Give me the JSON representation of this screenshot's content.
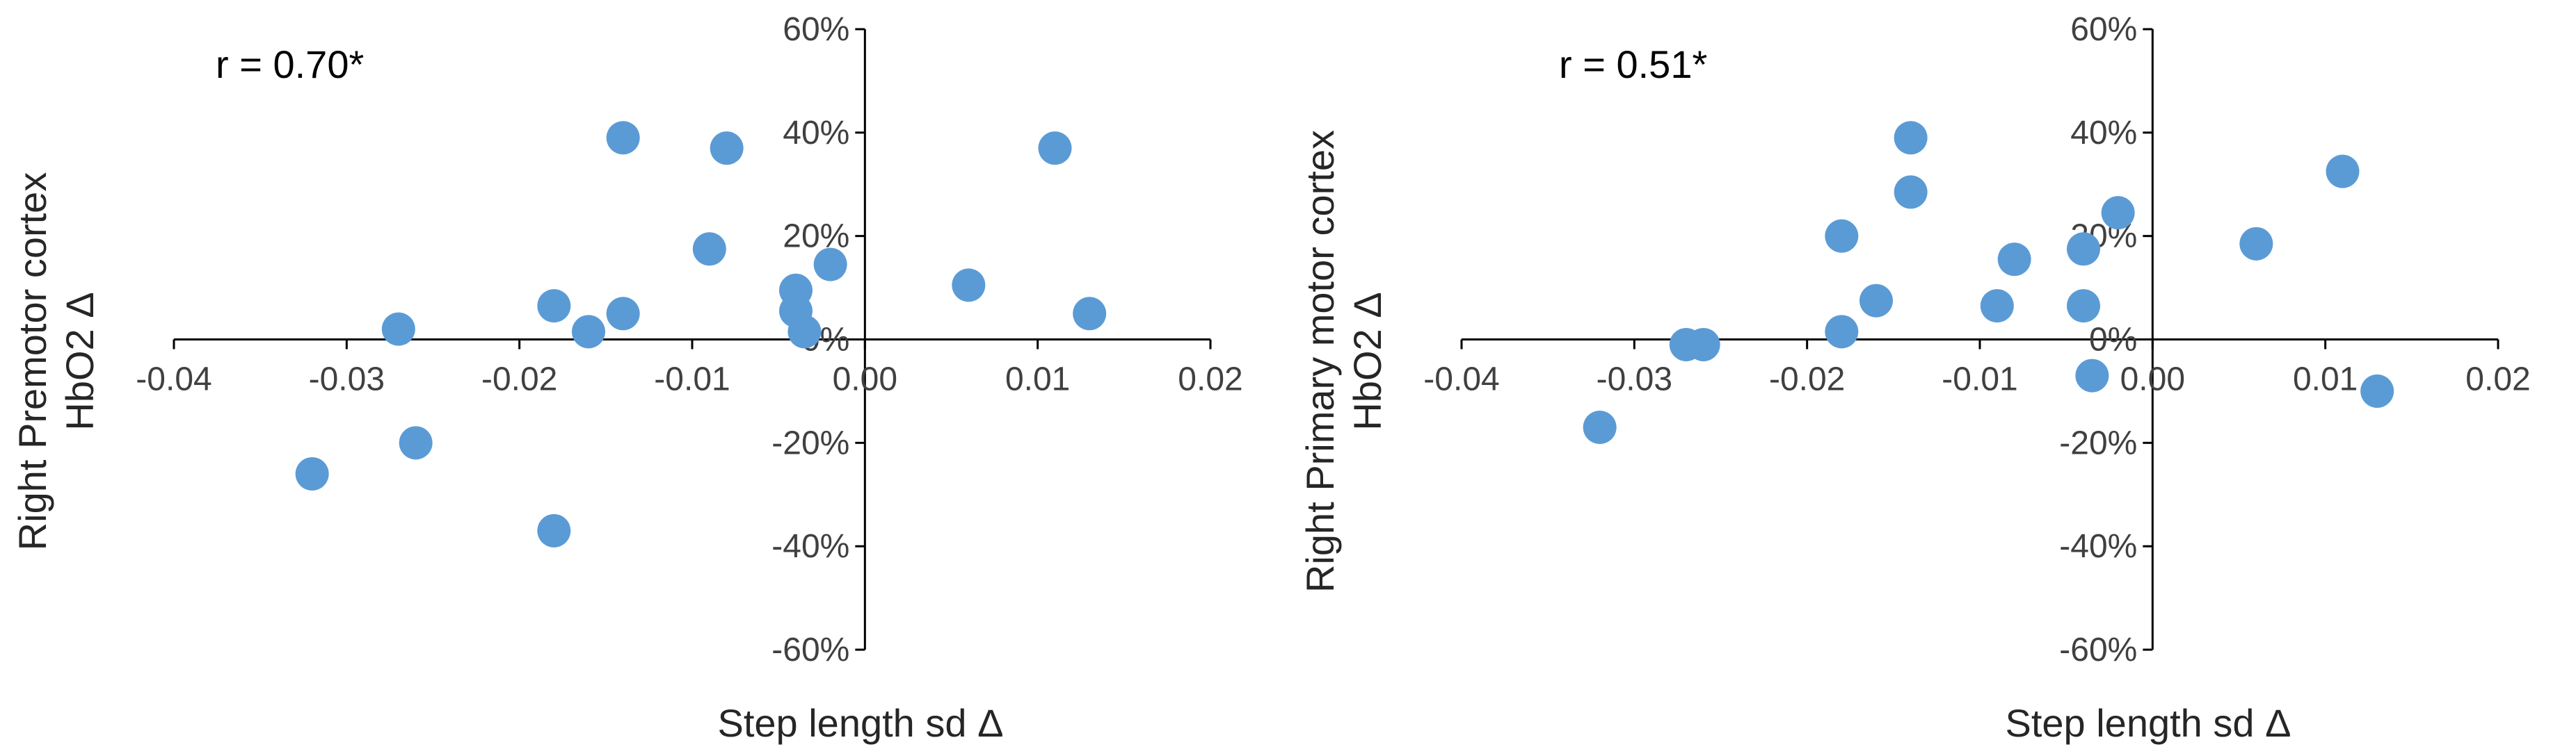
{
  "chart_data": [
    {
      "type": "scatter",
      "panel": "left",
      "annotation": "r = 0.70*",
      "xlabel": "Step length sd Δ",
      "ylabel": [
        "Right Premotor cortex",
        "HbO2 Δ"
      ],
      "xlim": [
        -0.04,
        0.02
      ],
      "ylim": [
        -0.6,
        0.6
      ],
      "x_ticks": [
        -0.04,
        -0.03,
        -0.02,
        -0.01,
        0.0,
        0.01,
        0.02
      ],
      "x_tick_labels": [
        "-0.04",
        "-0.03",
        "-0.02",
        "-0.01",
        "0.00",
        "0.01",
        "0.02"
      ],
      "y_ticks": [
        -0.6,
        -0.4,
        -0.2,
        0.0,
        0.2,
        0.4,
        0.6
      ],
      "y_tick_labels": [
        "-60%",
        "-40%",
        "-20%",
        "0%",
        "20%",
        "40%",
        "60%"
      ],
      "grid": false,
      "marker_color": "#5B9BD5",
      "series": [
        {
          "points": [
            {
              "x": -0.032,
              "y": -0.26
            },
            {
              "x": -0.027,
              "y": 0.02
            },
            {
              "x": -0.026,
              "y": -0.2
            },
            {
              "x": -0.018,
              "y": 0.065
            },
            {
              "x": -0.018,
              "y": -0.37
            },
            {
              "x": -0.016,
              "y": 0.015
            },
            {
              "x": -0.014,
              "y": 0.39
            },
            {
              "x": -0.014,
              "y": 0.05
            },
            {
              "x": -0.009,
              "y": 0.175
            },
            {
              "x": -0.008,
              "y": 0.37
            },
            {
              "x": -0.004,
              "y": 0.095
            },
            {
              "x": -0.004,
              "y": 0.055
            },
            {
              "x": -0.0035,
              "y": 0.015
            },
            {
              "x": -0.002,
              "y": 0.145
            },
            {
              "x": 0.006,
              "y": 0.105
            },
            {
              "x": 0.011,
              "y": 0.37
            },
            {
              "x": 0.013,
              "y": 0.05
            }
          ]
        }
      ]
    },
    {
      "type": "scatter",
      "panel": "right",
      "annotation": "r = 0.51*",
      "xlabel": "Step length sd Δ",
      "ylabel": [
        "Right Primary motor cortex",
        "HbO2 Δ"
      ],
      "xlim": [
        -0.04,
        0.02
      ],
      "ylim": [
        -0.6,
        0.6
      ],
      "x_ticks": [
        -0.04,
        -0.03,
        -0.02,
        -0.01,
        0.0,
        0.01,
        0.02
      ],
      "x_tick_labels": [
        "-0.04",
        "-0.03",
        "-0.02",
        "-0.01",
        "0.00",
        "0.01",
        "0.02"
      ],
      "y_ticks": [
        -0.6,
        -0.4,
        -0.2,
        0.0,
        0.2,
        0.4,
        0.6
      ],
      "y_tick_labels": [
        "-60%",
        "-40%",
        "-20%",
        "0%",
        "20%",
        "40%",
        "60%"
      ],
      "grid": false,
      "marker_color": "#5B9BD5",
      "series": [
        {
          "points": [
            {
              "x": -0.032,
              "y": -0.17
            },
            {
              "x": -0.027,
              "y": -0.01
            },
            {
              "x": -0.026,
              "y": -0.01
            },
            {
              "x": -0.018,
              "y": 0.2
            },
            {
              "x": -0.018,
              "y": 0.015
            },
            {
              "x": -0.016,
              "y": 0.075
            },
            {
              "x": -0.014,
              "y": 0.39
            },
            {
              "x": -0.014,
              "y": 0.285
            },
            {
              "x": -0.009,
              "y": 0.065
            },
            {
              "x": -0.008,
              "y": 0.155
            },
            {
              "x": -0.004,
              "y": 0.175
            },
            {
              "x": -0.004,
              "y": 0.065
            },
            {
              "x": -0.0035,
              "y": -0.07
            },
            {
              "x": -0.002,
              "y": 0.245
            },
            {
              "x": 0.006,
              "y": 0.185
            },
            {
              "x": 0.011,
              "y": 0.325
            },
            {
              "x": 0.013,
              "y": -0.1
            }
          ]
        }
      ]
    }
  ]
}
